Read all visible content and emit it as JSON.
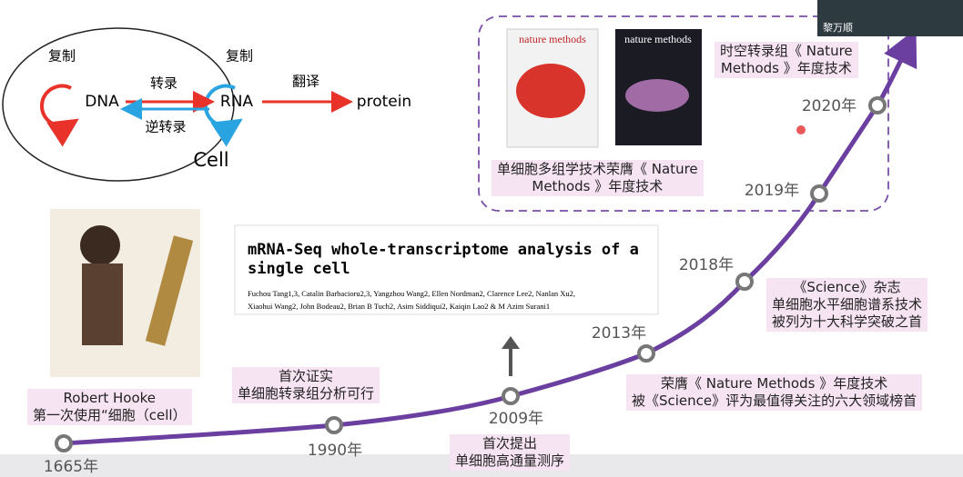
{
  "speaker": "黎万顺",
  "dogma": {
    "replication_left": "复制",
    "dna": "DNA",
    "transcription": "转录",
    "reverse_transcription": "逆转录",
    "replication_right": "复制",
    "rna": "RNA",
    "translation": "翻译",
    "protein": "protein",
    "cell": "Cell"
  },
  "covers": [
    "nature methods",
    "nature methods"
  ],
  "paper": {
    "title_lines": [
      "mRNA-Seq whole-transcriptome analysis of a",
      "single cell"
    ],
    "authors_lines": [
      "Fuchou Tang1,3, Catalin Barbacioru2,3, Yangzhou Wang2, Ellen Nordman2, Clarence Lee2, Nanlan Xu2,",
      "Xiaohui Wang2, John Bodeau2, Brian B Tuch2, Asim Siddiqui2, Kaiqin Lao2 & M Azim Surani1"
    ]
  },
  "timeline": [
    {
      "year": "1665年",
      "note": [
        "Robert Hooke",
        "第一次使用“细胞（cell）"
      ]
    },
    {
      "year": "1990年",
      "note": [
        "首次证实",
        "单细胞转录组分析可行"
      ]
    },
    {
      "year": "2009年",
      "note": [
        "首次提出",
        "单细胞高通量测序"
      ]
    },
    {
      "year": "2013年",
      "note": [
        "荣膺《 Nature Methods 》年度技术",
        "被《Science》评为最值得关注的六大领域榜首"
      ]
    },
    {
      "year": "2018年",
      "note": [
        "《Science》杂志",
        "单细胞水平细胞谱系技术",
        "被列为十大科学突破之首"
      ]
    },
    {
      "year": "2019年",
      "note": [
        "单细胞多组学技术荣膺《 Nature",
        "Methods 》年度技术"
      ]
    },
    {
      "year": "2020年",
      "note": [
        "时空转录组《 Nature",
        "Methods 》年度技术"
      ]
    }
  ]
}
